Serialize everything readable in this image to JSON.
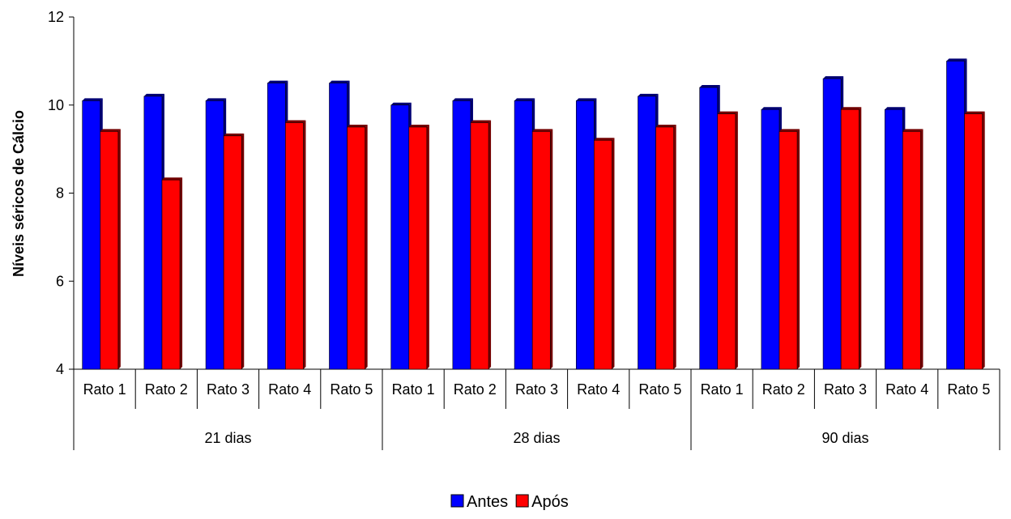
{
  "chart_data": {
    "type": "bar",
    "title": "",
    "xlabel": "",
    "ylabel": "Níveis séricos de Cálcio",
    "ylim": [
      4,
      12
    ],
    "yticks": [
      4,
      6,
      8,
      10,
      12
    ],
    "grid": false,
    "legend_position": "bottom",
    "groups": [
      {
        "label": "21 dias",
        "categories": [
          "Rato 1",
          "Rato 2",
          "Rato 3",
          "Rato 4",
          "Rato 5"
        ]
      },
      {
        "label": "28 dias",
        "categories": [
          "Rato 1",
          "Rato 2",
          "Rato 3",
          "Rato 4",
          "Rato 5"
        ]
      },
      {
        "label": "90 dias",
        "categories": [
          "Rato 1",
          "Rato 2",
          "Rato 3",
          "Rato 4",
          "Rato 5"
        ]
      }
    ],
    "series": [
      {
        "name": "Antes",
        "color": "#0000FF",
        "values": [
          10.1,
          10.2,
          10.1,
          10.5,
          10.5,
          10.0,
          10.1,
          10.1,
          10.1,
          10.2,
          10.4,
          9.9,
          10.6,
          9.9,
          11.0
        ]
      },
      {
        "name": "Após",
        "color": "#FF0000",
        "values": [
          9.4,
          8.3,
          9.3,
          9.6,
          9.5,
          9.5,
          9.6,
          9.4,
          9.2,
          9.5,
          9.8,
          9.4,
          9.9,
          9.4,
          9.8
        ]
      }
    ]
  }
}
